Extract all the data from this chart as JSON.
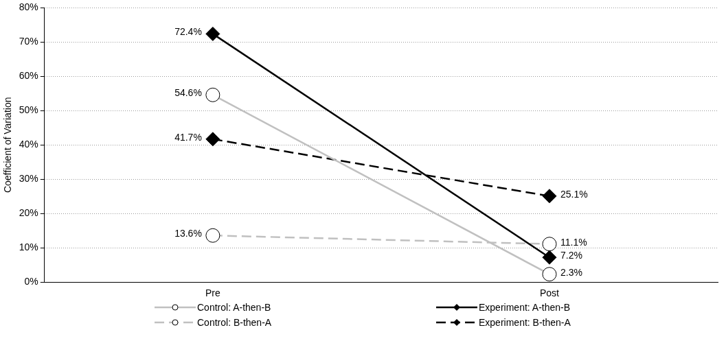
{
  "chart_data": {
    "type": "line",
    "ylabel": "Coefficient of Variation",
    "categories": [
      "Pre",
      "Post"
    ],
    "series": [
      {
        "name": "Control: A-then-B",
        "color": "#c0c0c0",
        "values": [
          54.6,
          2.3
        ],
        "marker": "circle",
        "line_style": "solid",
        "value_labels": [
          "54.6%",
          "2.3%"
        ]
      },
      {
        "name": "Experiment: A-then-B",
        "color": "#000000",
        "values": [
          72.4,
          7.2
        ],
        "marker": "diamond",
        "line_style": "solid",
        "value_labels": [
          "72.4%",
          "7.2%"
        ]
      },
      {
        "name": "Control: B-then-A",
        "color": "#c0c0c0",
        "values": [
          13.6,
          11.1
        ],
        "marker": "circle",
        "line_style": "dashed",
        "value_labels": [
          "13.6%",
          "11.1%"
        ]
      },
      {
        "name": "Experiment: B-then-A",
        "color": "#000000",
        "values": [
          41.7,
          25.1
        ],
        "marker": "diamond",
        "line_style": "dashed",
        "value_labels": [
          "41.7%",
          "25.1%"
        ]
      }
    ],
    "ylim": [
      0,
      80
    ],
    "yticks": [
      {
        "value": 0,
        "label": "0%"
      },
      {
        "value": 10,
        "label": "10%"
      },
      {
        "value": 20,
        "label": "20%"
      },
      {
        "value": 30,
        "label": "30%"
      },
      {
        "value": 40,
        "label": "40%"
      },
      {
        "value": 50,
        "label": "50%"
      },
      {
        "value": 60,
        "label": "60%"
      },
      {
        "value": 70,
        "label": "70%"
      },
      {
        "value": 80,
        "label": "80%"
      }
    ],
    "grid": "y",
    "legend": "bottom"
  }
}
